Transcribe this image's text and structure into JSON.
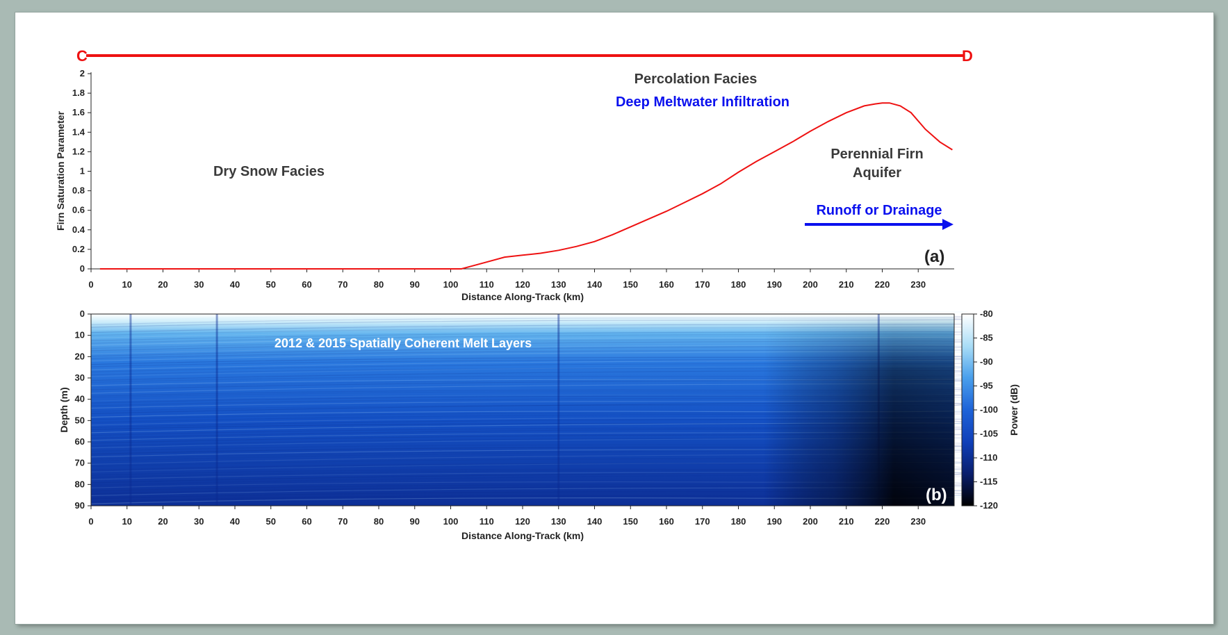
{
  "transect": {
    "start_label": "C",
    "end_label": "D",
    "color": "#ee1111"
  },
  "chart_data": [
    {
      "type": "line",
      "panel_label": "(a)",
      "xlabel": "Distance Along-Track (km)",
      "ylabel": "Firn Saturation Parameter",
      "xlim": [
        0,
        240
      ],
      "ylim": [
        0,
        2
      ],
      "xticks": [
        0,
        10,
        20,
        30,
        40,
        50,
        60,
        70,
        80,
        90,
        100,
        110,
        120,
        130,
        140,
        150,
        160,
        170,
        180,
        190,
        200,
        210,
        220,
        230
      ],
      "yticks": [
        0,
        0.2,
        0.4,
        0.6,
        0.8,
        1,
        1.2,
        1.4,
        1.6,
        1.8,
        2
      ],
      "series": [
        {
          "color": "#ee1111",
          "x": [
            2.5,
            10,
            20,
            30,
            40,
            50,
            60,
            70,
            80,
            90,
            100,
            103,
            106,
            110,
            115,
            120,
            125,
            130,
            135,
            140,
            145,
            150,
            155,
            160,
            165,
            170,
            175,
            180,
            185,
            190,
            195,
            200,
            205,
            210,
            215,
            218,
            220,
            222,
            225,
            228,
            232,
            236,
            239.5
          ],
          "y": [
            0,
            0,
            0,
            0,
            0,
            0,
            0,
            0,
            0,
            0,
            0,
            0,
            0.03,
            0.07,
            0.12,
            0.14,
            0.16,
            0.19,
            0.23,
            0.28,
            0.35,
            0.43,
            0.51,
            0.59,
            0.68,
            0.77,
            0.87,
            0.99,
            1.1,
            1.2,
            1.3,
            1.41,
            1.51,
            1.6,
            1.67,
            1.69,
            1.7,
            1.7,
            1.67,
            1.6,
            1.43,
            1.3,
            1.22
          ]
        }
      ],
      "annotations": {
        "dry_snow": "Dry Snow Facies",
        "percolation": "Percolation Facies",
        "deep_infiltration": "Deep Meltwater Infiltration",
        "aquifer_line1": "Perennial Firn",
        "aquifer_line2": "Aquifer",
        "runoff": "Runoff or Drainage"
      },
      "grid": false
    },
    {
      "type": "heatmap",
      "panel_label": "(b)",
      "xlabel": "Distance Along-Track (km)",
      "ylabel": "Depth (m)",
      "xlim": [
        0,
        240
      ],
      "ylim": [
        0,
        90
      ],
      "y_reversed": true,
      "xticks": [
        0,
        10,
        20,
        30,
        40,
        50,
        60,
        70,
        80,
        90,
        100,
        110,
        120,
        130,
        140,
        150,
        160,
        170,
        180,
        190,
        200,
        210,
        220,
        230
      ],
      "yticks": [
        0,
        10,
        20,
        30,
        40,
        50,
        60,
        70,
        80,
        90
      ],
      "annotation": "2012 & 2015 Spatially Coherent Melt Layers",
      "colorbar": {
        "label": "Power (dB)",
        "range": [
          -120,
          -80
        ],
        "ticks": [
          -80,
          -85,
          -90,
          -95,
          -100,
          -105,
          -110,
          -115,
          -120
        ],
        "colormap": [
          "#000000",
          "#0a1f6e",
          "#0f3fb8",
          "#1e63d8",
          "#4aa0ec",
          "#a8dcf6",
          "#ffffff"
        ]
      }
    }
  ]
}
